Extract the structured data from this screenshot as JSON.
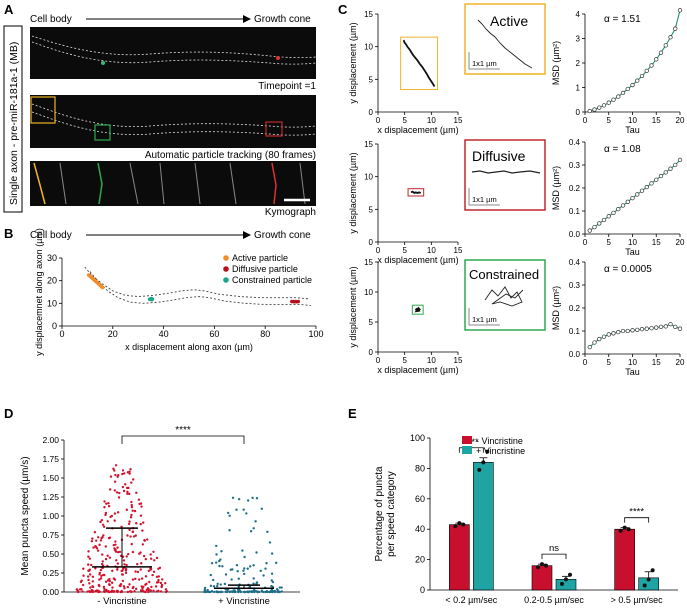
{
  "panel_labels": {
    "a": "A",
    "b": "B",
    "c": "C",
    "d": "D",
    "e": "E"
  },
  "panel_a": {
    "vertical_label": "Single axon - pre-miR-181a-1 (MB)",
    "cell_body": "Cell body",
    "growth_cone": "Growth cone",
    "caption_timepoint": "Timepoint =1",
    "caption_tracking": "Automatic particle tracking (80 frames)",
    "caption_kymograph": "Kymograph"
  },
  "panel_b": {
    "cell_body": "Cell body",
    "growth_cone": "Growth cone",
    "legend": [
      {
        "label": "Active particle",
        "color": "#f28c28"
      },
      {
        "label": "Diffusive particle",
        "color": "#b5121b"
      },
      {
        "label": "Constrained particle",
        "color": "#1fa38a"
      }
    ]
  },
  "panel_c": {
    "rows": [
      {
        "title": "Active",
        "frame_color": "#f0b429",
        "scale": "1x1 µm",
        "alpha": "α = 1.51"
      },
      {
        "title": "Diffusive",
        "frame_color": "#c0282d",
        "scale": "1x1 µm",
        "alpha": "α = 1.08"
      },
      {
        "title": "Constrained",
        "frame_color": "#2fa84f",
        "scale": "1x1 µm",
        "alpha": "α = 0.0005"
      }
    ]
  },
  "colors": {
    "red_bar": "#c8102e",
    "teal_bar": "#1fa3a3",
    "axon_bg": "#0b0b0b"
  },
  "chart_data": [
    {
      "id": "B",
      "type": "scatter",
      "xlabel": "x displacement along axon (µm)",
      "ylabel": "y displacemnet along axon (µm)",
      "xlim": [
        0,
        100
      ],
      "ylim": [
        0,
        30
      ],
      "xticks": [
        0,
        20,
        40,
        60,
        80,
        100
      ],
      "yticks": [
        0,
        10,
        20,
        30
      ],
      "axon_outline_upper": [
        [
          9,
          26
        ],
        [
          12,
          22
        ],
        [
          16,
          18.5
        ],
        [
          20,
          15.5
        ],
        [
          25,
          13.5
        ],
        [
          30,
          13
        ],
        [
          36,
          13.5
        ],
        [
          42,
          14.5
        ],
        [
          47,
          15.5
        ],
        [
          52,
          16
        ],
        [
          56,
          15.5
        ],
        [
          62,
          14
        ],
        [
          70,
          13
        ],
        [
          78,
          12.5
        ],
        [
          86,
          12.5
        ],
        [
          92,
          12.5
        ],
        [
          97,
          12
        ]
      ],
      "axon_outline_lower": [
        [
          11,
          24
        ],
        [
          14,
          20
        ],
        [
          18,
          15.5
        ],
        [
          22,
          12.5
        ],
        [
          27,
          10.5
        ],
        [
          32,
          10
        ],
        [
          38,
          10.5
        ],
        [
          44,
          11.5
        ],
        [
          49,
          12.5
        ],
        [
          54,
          13
        ],
        [
          58,
          12.5
        ],
        [
          64,
          11
        ],
        [
          72,
          10
        ],
        [
          80,
          9.5
        ],
        [
          88,
          9.5
        ],
        [
          94,
          9.5
        ],
        [
          98,
          9
        ]
      ],
      "series": [
        {
          "name": "Active particle",
          "points": [
            [
              10.5,
              22.5
            ],
            [
              11,
              22
            ],
            [
              11.5,
              21.5
            ],
            [
              12,
              21
            ],
            [
              12.5,
              20.5
            ],
            [
              13,
              20
            ],
            [
              13.5,
              19.5
            ],
            [
              14,
              19
            ],
            [
              14.5,
              18.5
            ],
            [
              15,
              18
            ],
            [
              15.5,
              17.5
            ],
            [
              16,
              17
            ]
          ]
        },
        {
          "name": "Diffusive particle",
          "points": [
            [
              90.5,
              10.8
            ],
            [
              91,
              10.8
            ],
            [
              91.5,
              10.7
            ],
            [
              92,
              10.8
            ],
            [
              92.5,
              10.7
            ],
            [
              93,
              10.8
            ]
          ]
        },
        {
          "name": "Constrained particle",
          "points": [
            [
              34.5,
              11.8
            ],
            [
              35,
              12
            ],
            [
              35.3,
              11.6
            ],
            [
              35.6,
              11.9
            ],
            [
              35.2,
              12.1
            ]
          ]
        }
      ]
    },
    {
      "id": "C-active-traj",
      "type": "line",
      "xlabel": "x displacement (µm)",
      "ylabel": "y displacement (µm)",
      "xlim": [
        0,
        15
      ],
      "ylim": [
        0,
        15
      ],
      "xticks": [
        0,
        5,
        10,
        15
      ],
      "yticks": [
        0,
        5,
        10,
        15
      ],
      "points": [
        [
          4.8,
          11
        ],
        [
          5,
          10.6
        ],
        [
          5.3,
          10.3
        ],
        [
          5.5,
          10
        ],
        [
          5.9,
          9.6
        ],
        [
          6.2,
          9.2
        ],
        [
          6.6,
          8.7
        ],
        [
          7,
          8.3
        ],
        [
          7.4,
          7.9
        ],
        [
          7.8,
          7.4
        ],
        [
          8.3,
          6.9
        ],
        [
          8.7,
          6.4
        ],
        [
          9.1,
          5.9
        ],
        [
          9.5,
          5.3
        ],
        [
          9.9,
          4.8
        ],
        [
          10.3,
          4.3
        ],
        [
          10.6,
          3.9
        ]
      ]
    },
    {
      "id": "C-diffusive-traj",
      "type": "line",
      "xlabel": "x displacement (µm)",
      "ylabel": "y displacement (µm)",
      "xlim": [
        0,
        15
      ],
      "ylim": [
        0,
        15
      ],
      "xticks": [
        0,
        5,
        10,
        15
      ],
      "yticks": [
        0,
        5,
        10,
        15
      ],
      "points": [
        [
          6.2,
          7.6
        ],
        [
          6.5,
          7.7
        ],
        [
          6.8,
          7.5
        ],
        [
          7.1,
          7.6
        ],
        [
          7.4,
          7.5
        ],
        [
          7.7,
          7.6
        ],
        [
          8,
          7.5
        ]
      ]
    },
    {
      "id": "C-constrained-traj",
      "type": "line",
      "xlabel": "x displacement (µm)",
      "ylabel": "y displacement (µm)",
      "xlim": [
        0,
        15
      ],
      "ylim": [
        0,
        15
      ],
      "xticks": [
        0,
        5,
        10,
        15
      ],
      "yticks": [
        0,
        5,
        10,
        15
      ],
      "points": [
        [
          7,
          7
        ],
        [
          7.3,
          7.2
        ],
        [
          7.5,
          6.9
        ],
        [
          7.8,
          7.1
        ],
        [
          7.6,
          7.3
        ],
        [
          7.2,
          6.8
        ],
        [
          7.9,
          6.9
        ]
      ]
    },
    {
      "id": "C-active-msd",
      "type": "line",
      "xlabel": "Tau",
      "ylabel": "MSD (µm²)",
      "xlim": [
        0,
        20
      ],
      "ylim": [
        0,
        4
      ],
      "xticks": [
        0,
        5,
        10,
        15,
        20
      ],
      "yticks": [
        0,
        1,
        2,
        3,
        4
      ],
      "points": [
        [
          1,
          0.04
        ],
        [
          2,
          0.1
        ],
        [
          3,
          0.18
        ],
        [
          4,
          0.27
        ],
        [
          5,
          0.38
        ],
        [
          6,
          0.5
        ],
        [
          7,
          0.63
        ],
        [
          8,
          0.78
        ],
        [
          9,
          0.94
        ],
        [
          10,
          1.1
        ],
        [
          11,
          1.28
        ],
        [
          12,
          1.47
        ],
        [
          13,
          1.68
        ],
        [
          14,
          1.9
        ],
        [
          15,
          2.15
        ],
        [
          16,
          2.42
        ],
        [
          17,
          2.72
        ],
        [
          18,
          3.05
        ],
        [
          19,
          3.4
        ],
        [
          20,
          4.15
        ]
      ]
    },
    {
      "id": "C-diffusive-msd",
      "type": "line",
      "xlabel": "Tau",
      "ylabel": "MSD (µm²)",
      "xlim": [
        0,
        20
      ],
      "ylim": [
        0,
        0.4
      ],
      "xticks": [
        0,
        5,
        10,
        15,
        20
      ],
      "yticks": [
        0,
        0.1,
        0.2,
        0.3,
        0.4
      ],
      "points": [
        [
          1,
          0.015
        ],
        [
          2,
          0.03
        ],
        [
          3,
          0.046
        ],
        [
          4,
          0.061
        ],
        [
          5,
          0.077
        ],
        [
          6,
          0.092
        ],
        [
          7,
          0.108
        ],
        [
          8,
          0.124
        ],
        [
          9,
          0.14
        ],
        [
          10,
          0.156
        ],
        [
          11,
          0.172
        ],
        [
          12,
          0.188
        ],
        [
          13,
          0.204
        ],
        [
          14,
          0.22
        ],
        [
          15,
          0.236
        ],
        [
          16,
          0.252
        ],
        [
          17,
          0.268
        ],
        [
          18,
          0.284
        ],
        [
          19,
          0.3
        ],
        [
          20,
          0.322
        ]
      ]
    },
    {
      "id": "C-constrained-msd",
      "type": "line",
      "xlabel": "Tau",
      "ylabel": "MSD (µm²)",
      "xlim": [
        0,
        20
      ],
      "ylim": [
        0,
        0.4
      ],
      "xticks": [
        0,
        5,
        10,
        15,
        20
      ],
      "yticks": [
        0,
        0.1,
        0.2,
        0.3,
        0.4
      ],
      "points": [
        [
          1,
          0.03
        ],
        [
          2,
          0.05
        ],
        [
          3,
          0.065
        ],
        [
          4,
          0.075
        ],
        [
          5,
          0.085
        ],
        [
          6,
          0.09
        ],
        [
          7,
          0.095
        ],
        [
          8,
          0.1
        ],
        [
          9,
          0.1
        ],
        [
          10,
          0.103
        ],
        [
          11,
          0.105
        ],
        [
          12,
          0.108
        ],
        [
          13,
          0.11
        ],
        [
          14,
          0.112
        ],
        [
          15,
          0.115
        ],
        [
          16,
          0.118
        ],
        [
          17,
          0.12
        ],
        [
          18,
          0.13
        ],
        [
          19,
          0.118
        ],
        [
          20,
          0.11
        ]
      ]
    },
    {
      "id": "D",
      "type": "scatter",
      "ylabel": "Mean puncta speed (µm/s)",
      "categories": [
        "- Vincristine",
        "+ Vincristine"
      ],
      "ylim": [
        0,
        2.0
      ],
      "yticks": [
        0.0,
        0.25,
        0.5,
        0.75,
        1.0,
        1.25,
        1.5,
        1.75,
        2.0
      ],
      "series": [
        {
          "name": "- Vincristine",
          "mean": 0.33,
          "upper_bar": 0.84,
          "max": 1.7
        },
        {
          "name": "+ Vincristine",
          "mean": 0.05,
          "upper_bar": 0.09,
          "max": 1.3
        }
      ],
      "annotation": "****"
    },
    {
      "id": "E",
      "type": "bar",
      "ylabel": "Percentage of puncta per speed category",
      "categories": [
        "< 0.2 µm/sec",
        "0.2-0.5 µm/sec",
        "> 0.5 µm/sec"
      ],
      "ylim": [
        0,
        100
      ],
      "yticks": [
        0,
        20,
        40,
        60,
        80,
        100
      ],
      "series": [
        {
          "name": "- Vincristine",
          "values": [
            43,
            16,
            40
          ],
          "errors": [
            1,
            1,
            1
          ],
          "points": [
            [
              42,
              44,
              43
            ],
            [
              15,
              17,
              16
            ],
            [
              39,
              41,
              40
            ]
          ]
        },
        {
          "name": "+ Vincristine",
          "values": [
            84,
            7,
            8
          ],
          "errors": [
            3,
            2,
            4
          ],
          "points": [
            [
              79,
              84,
              91
            ],
            [
              4,
              7,
              10
            ],
            [
              3,
              7,
              13
            ]
          ]
        }
      ],
      "significance": [
        "****",
        "ns",
        "****"
      ]
    }
  ]
}
